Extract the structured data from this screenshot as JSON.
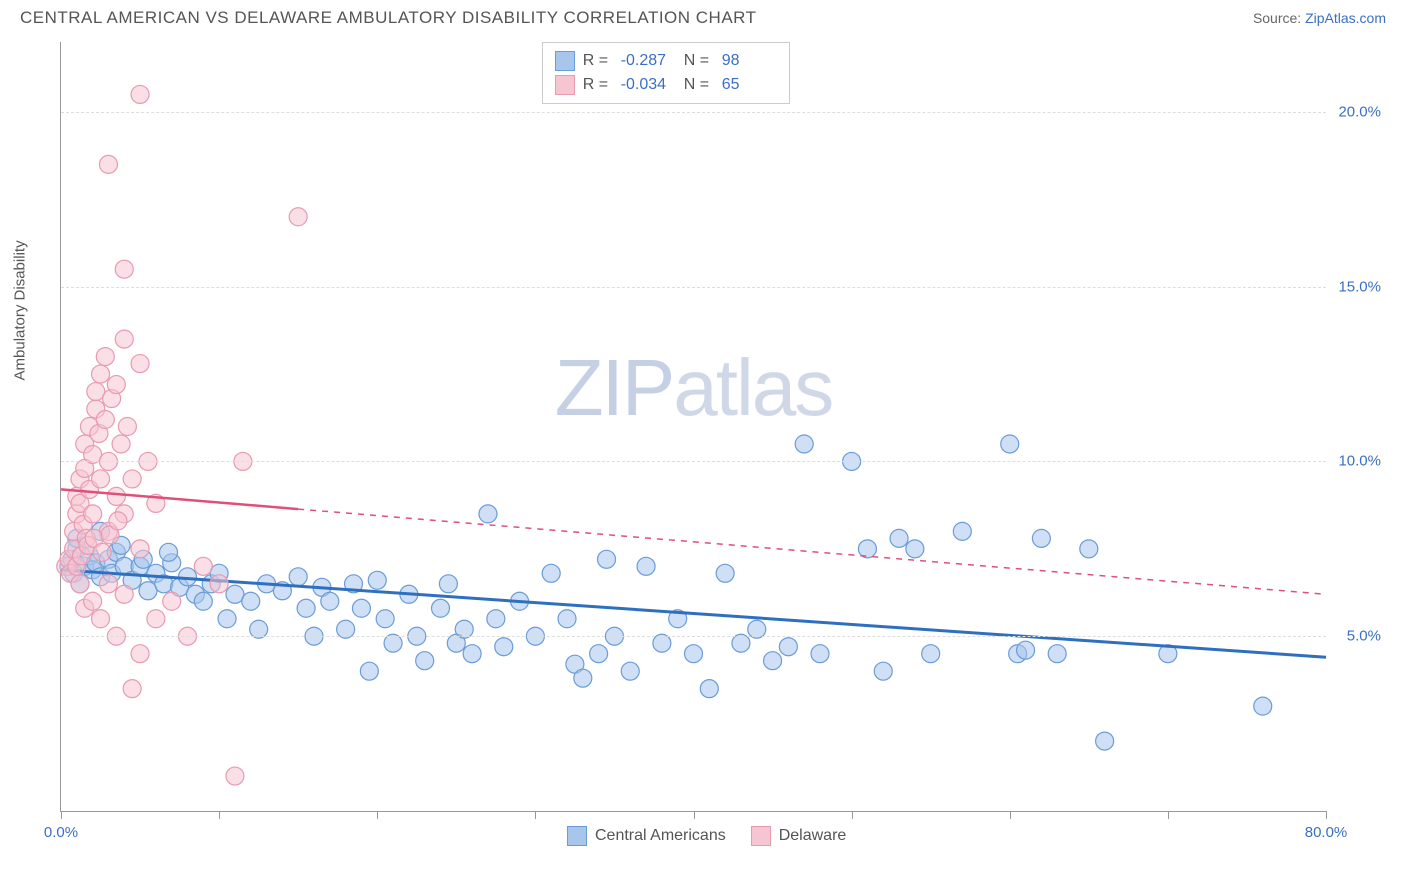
{
  "title": "CENTRAL AMERICAN VS DELAWARE AMBULATORY DISABILITY CORRELATION CHART",
  "source_label": "Source: ",
  "source_link": "ZipAtlas.com",
  "ylabel": "Ambulatory Disability",
  "watermark_a": "ZIP",
  "watermark_b": "atlas",
  "chart": {
    "type": "scatter",
    "background_color": "#ffffff",
    "grid_color": "#dddddd",
    "axis_color": "#999999",
    "xlim": [
      0,
      80
    ],
    "ylim": [
      0,
      22
    ],
    "xticks": [
      0,
      10,
      20,
      30,
      40,
      50,
      60,
      70,
      80
    ],
    "xtick_labels": {
      "0": "0.0%",
      "80": "80.0%"
    },
    "yticks": [
      5,
      10,
      15,
      20
    ],
    "ytick_labels": [
      "5.0%",
      "10.0%",
      "15.0%",
      "20.0%"
    ],
    "marker_radius": 9,
    "marker_opacity": 0.55,
    "tick_label_color": "#3a6fc4",
    "axis_label_color": "#555555",
    "axis_label_fontsize": 15
  },
  "series": [
    {
      "name": "Central Americans",
      "fill_color": "#a8c5ec",
      "stroke_color": "#6a9cd8",
      "line_color": "#2f6fc0",
      "line_width": 3,
      "r_value": "-0.287",
      "n_value": "98",
      "regression": {
        "x1": 0,
        "y1": 6.9,
        "x2": 80,
        "y2": 4.4
      },
      "line_solid_to_x": 80,
      "points": [
        [
          0.5,
          7.0
        ],
        [
          0.7,
          7.2
        ],
        [
          0.8,
          6.8
        ],
        [
          1.0,
          7.5
        ],
        [
          1.2,
          6.5
        ],
        [
          1.5,
          7.0
        ],
        [
          1.8,
          7.3
        ],
        [
          2.0,
          6.9
        ],
        [
          2.2,
          7.1
        ],
        [
          2.5,
          6.7
        ],
        [
          3.0,
          7.2
        ],
        [
          3.2,
          6.8
        ],
        [
          3.5,
          7.4
        ],
        [
          4.0,
          7.0
        ],
        [
          4.5,
          6.6
        ],
        [
          5.0,
          7.0
        ],
        [
          5.5,
          6.3
        ],
        [
          6.0,
          6.8
        ],
        [
          6.5,
          6.5
        ],
        [
          7.0,
          7.1
        ],
        [
          7.5,
          6.4
        ],
        [
          8.0,
          6.7
        ],
        [
          8.5,
          6.2
        ],
        [
          9.0,
          6.0
        ],
        [
          9.5,
          6.5
        ],
        [
          10.0,
          6.8
        ],
        [
          10.5,
          5.5
        ],
        [
          11.0,
          6.2
        ],
        [
          12.0,
          6.0
        ],
        [
          12.5,
          5.2
        ],
        [
          13.0,
          6.5
        ],
        [
          14.0,
          6.3
        ],
        [
          15.0,
          6.7
        ],
        [
          15.5,
          5.8
        ],
        [
          16.0,
          5.0
        ],
        [
          16.5,
          6.4
        ],
        [
          17.0,
          6.0
        ],
        [
          18.0,
          5.2
        ],
        [
          18.5,
          6.5
        ],
        [
          19.0,
          5.8
        ],
        [
          19.5,
          4.0
        ],
        [
          20.0,
          6.6
        ],
        [
          20.5,
          5.5
        ],
        [
          21.0,
          4.8
        ],
        [
          22.0,
          6.2
        ],
        [
          22.5,
          5.0
        ],
        [
          23.0,
          4.3
        ],
        [
          24.0,
          5.8
        ],
        [
          24.5,
          6.5
        ],
        [
          25.0,
          4.8
        ],
        [
          25.5,
          5.2
        ],
        [
          26.0,
          4.5
        ],
        [
          27.0,
          8.5
        ],
        [
          27.5,
          5.5
        ],
        [
          28.0,
          4.7
        ],
        [
          29.0,
          6.0
        ],
        [
          30.0,
          5.0
        ],
        [
          31.0,
          6.8
        ],
        [
          32.0,
          5.5
        ],
        [
          32.5,
          4.2
        ],
        [
          33.0,
          3.8
        ],
        [
          34.0,
          4.5
        ],
        [
          34.5,
          7.2
        ],
        [
          35.0,
          5.0
        ],
        [
          36.0,
          4.0
        ],
        [
          37.0,
          7.0
        ],
        [
          38.0,
          4.8
        ],
        [
          39.0,
          5.5
        ],
        [
          40.0,
          4.5
        ],
        [
          41.0,
          3.5
        ],
        [
          42.0,
          6.8
        ],
        [
          43.0,
          4.8
        ],
        [
          44.0,
          5.2
        ],
        [
          45.0,
          4.3
        ],
        [
          46.0,
          4.7
        ],
        [
          47.0,
          10.5
        ],
        [
          48.0,
          4.5
        ],
        [
          50.0,
          10.0
        ],
        [
          51.0,
          7.5
        ],
        [
          52.0,
          4.0
        ],
        [
          53.0,
          7.8
        ],
        [
          54.0,
          7.5
        ],
        [
          55.0,
          4.5
        ],
        [
          57.0,
          8.0
        ],
        [
          60.0,
          10.5
        ],
        [
          60.5,
          4.5
        ],
        [
          61.0,
          4.6
        ],
        [
          62.0,
          7.8
        ],
        [
          63.0,
          4.5
        ],
        [
          65.0,
          7.5
        ],
        [
          66.0,
          2.0
        ],
        [
          70.0,
          4.5
        ],
        [
          76.0,
          3.0
        ],
        [
          1.0,
          7.8
        ],
        [
          2.5,
          8.0
        ],
        [
          3.8,
          7.6
        ],
        [
          5.2,
          7.2
        ],
        [
          6.8,
          7.4
        ]
      ]
    },
    {
      "name": "Delaware",
      "fill_color": "#f5c5d1",
      "stroke_color": "#e89ab0",
      "line_color": "#e04f7a",
      "line_width": 2.5,
      "r_value": "-0.034",
      "n_value": "65",
      "regression": {
        "x1": 0,
        "y1": 9.2,
        "x2": 80,
        "y2": 6.2
      },
      "line_solid_to_x": 15,
      "points": [
        [
          0.3,
          7.0
        ],
        [
          0.5,
          7.2
        ],
        [
          0.6,
          6.8
        ],
        [
          0.8,
          7.5
        ],
        [
          0.8,
          8.0
        ],
        [
          1.0,
          8.5
        ],
        [
          1.0,
          9.0
        ],
        [
          1.2,
          8.8
        ],
        [
          1.2,
          9.5
        ],
        [
          1.4,
          8.2
        ],
        [
          1.5,
          9.8
        ],
        [
          1.5,
          10.5
        ],
        [
          1.6,
          7.8
        ],
        [
          1.8,
          9.2
        ],
        [
          1.8,
          11.0
        ],
        [
          2.0,
          8.5
        ],
        [
          2.0,
          10.2
        ],
        [
          2.2,
          11.5
        ],
        [
          2.2,
          12.0
        ],
        [
          2.4,
          10.8
        ],
        [
          2.5,
          9.5
        ],
        [
          2.5,
          12.5
        ],
        [
          2.8,
          11.2
        ],
        [
          2.8,
          13.0
        ],
        [
          3.0,
          10.0
        ],
        [
          3.0,
          8.0
        ],
        [
          3.2,
          11.8
        ],
        [
          3.5,
          9.0
        ],
        [
          3.5,
          12.2
        ],
        [
          3.8,
          10.5
        ],
        [
          4.0,
          8.5
        ],
        [
          4.0,
          13.5
        ],
        [
          4.2,
          11.0
        ],
        [
          4.5,
          9.5
        ],
        [
          5.0,
          7.5
        ],
        [
          5.0,
          12.8
        ],
        [
          5.5,
          10.0
        ],
        [
          6.0,
          8.8
        ],
        [
          3.0,
          18.5
        ],
        [
          5.0,
          20.5
        ],
        [
          4.0,
          15.5
        ],
        [
          1.2,
          6.5
        ],
        [
          1.5,
          5.8
        ],
        [
          2.0,
          6.0
        ],
        [
          2.5,
          5.5
        ],
        [
          3.0,
          6.5
        ],
        [
          3.5,
          5.0
        ],
        [
          4.0,
          6.2
        ],
        [
          5.0,
          4.5
        ],
        [
          6.0,
          5.5
        ],
        [
          7.0,
          6.0
        ],
        [
          8.0,
          5.0
        ],
        [
          4.5,
          3.5
        ],
        [
          9.0,
          7.0
        ],
        [
          10.0,
          6.5
        ],
        [
          11.0,
          1.0
        ],
        [
          11.5,
          10.0
        ],
        [
          15.0,
          17.0
        ],
        [
          1.0,
          7.0
        ],
        [
          1.3,
          7.3
        ],
        [
          1.7,
          7.6
        ],
        [
          2.1,
          7.8
        ],
        [
          2.6,
          7.4
        ],
        [
          3.1,
          7.9
        ],
        [
          3.6,
          8.3
        ]
      ]
    }
  ],
  "bottom_legend": [
    {
      "label": "Central Americans",
      "fill": "#a8c5ec",
      "stroke": "#6a9cd8"
    },
    {
      "label": "Delaware",
      "fill": "#f5c5d1",
      "stroke": "#e89ab0"
    }
  ]
}
